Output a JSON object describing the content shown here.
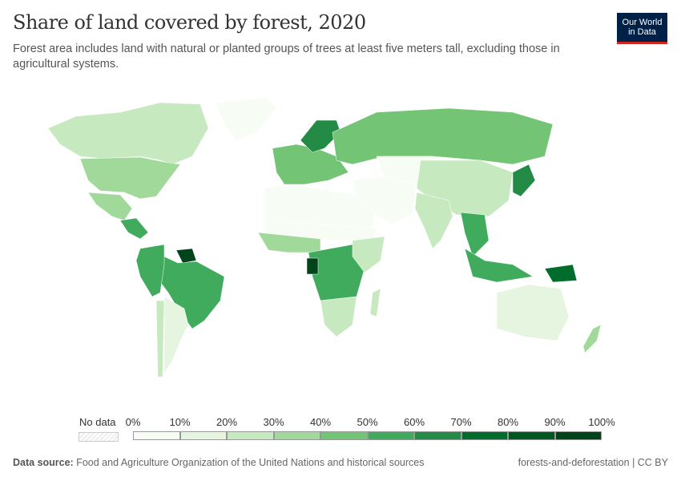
{
  "header": {
    "title": "Share of land covered by forest, 2020",
    "subtitle": "Forest area includes land with natural or planted groups of trees at least five meters tall, excluding those in agricultural systems.",
    "logo": "Our World in Data"
  },
  "legend": {
    "no_data_label": "No data",
    "ticks": [
      "0%",
      "10%",
      "20%",
      "30%",
      "40%",
      "50%",
      "60%",
      "70%",
      "80%",
      "90%",
      "100%"
    ],
    "colors": [
      "#f7fcf5",
      "#e5f5e0",
      "#c7e9c0",
      "#a1d99b",
      "#74c476",
      "#41ab5d",
      "#238b45",
      "#006d2c",
      "#00571f",
      "#00441b"
    ]
  },
  "map_regions": [
    {
      "name": "Canada",
      "bin": 2
    },
    {
      "name": "United States",
      "bin": 3
    },
    {
      "name": "Greenland",
      "bin": 0
    },
    {
      "name": "Mexico",
      "bin": 3
    },
    {
      "name": "Central America",
      "bin": 5
    },
    {
      "name": "Brazil",
      "bin": 5
    },
    {
      "name": "Guianas",
      "bin": 9
    },
    {
      "name": "Andean South America",
      "bin": 5
    },
    {
      "name": "Argentina",
      "bin": 1
    },
    {
      "name": "Chile",
      "bin": 2
    },
    {
      "name": "North Africa",
      "bin": 0
    },
    {
      "name": "Sahel",
      "bin": 0
    },
    {
      "name": "West Africa",
      "bin": 3
    },
    {
      "name": "Central Africa",
      "bin": 5
    },
    {
      "name": "Gabon",
      "bin": 9
    },
    {
      "name": "Southern Africa",
      "bin": 2
    },
    {
      "name": "East Africa",
      "bin": 2
    },
    {
      "name": "Madagascar",
      "bin": 2
    },
    {
      "name": "Europe",
      "bin": 4
    },
    {
      "name": "Scandinavia",
      "bin": 6
    },
    {
      "name": "Russia",
      "bin": 4
    },
    {
      "name": "Middle East",
      "bin": 0
    },
    {
      "name": "Central Asia",
      "bin": 0
    },
    {
      "name": "China",
      "bin": 2
    },
    {
      "name": "India",
      "bin": 2
    },
    {
      "name": "Southeast Asia",
      "bin": 5
    },
    {
      "name": "Japan",
      "bin": 6
    },
    {
      "name": "Indonesia",
      "bin": 5
    },
    {
      "name": "Papua New Guinea",
      "bin": 7
    },
    {
      "name": "Australia",
      "bin": 1
    },
    {
      "name": "New Zealand",
      "bin": 3
    }
  ],
  "footer": {
    "source_label": "Data source:",
    "source": "Food and Agriculture Organization of the United Nations and historical sources",
    "right": "forests-and-deforestation | CC BY"
  }
}
